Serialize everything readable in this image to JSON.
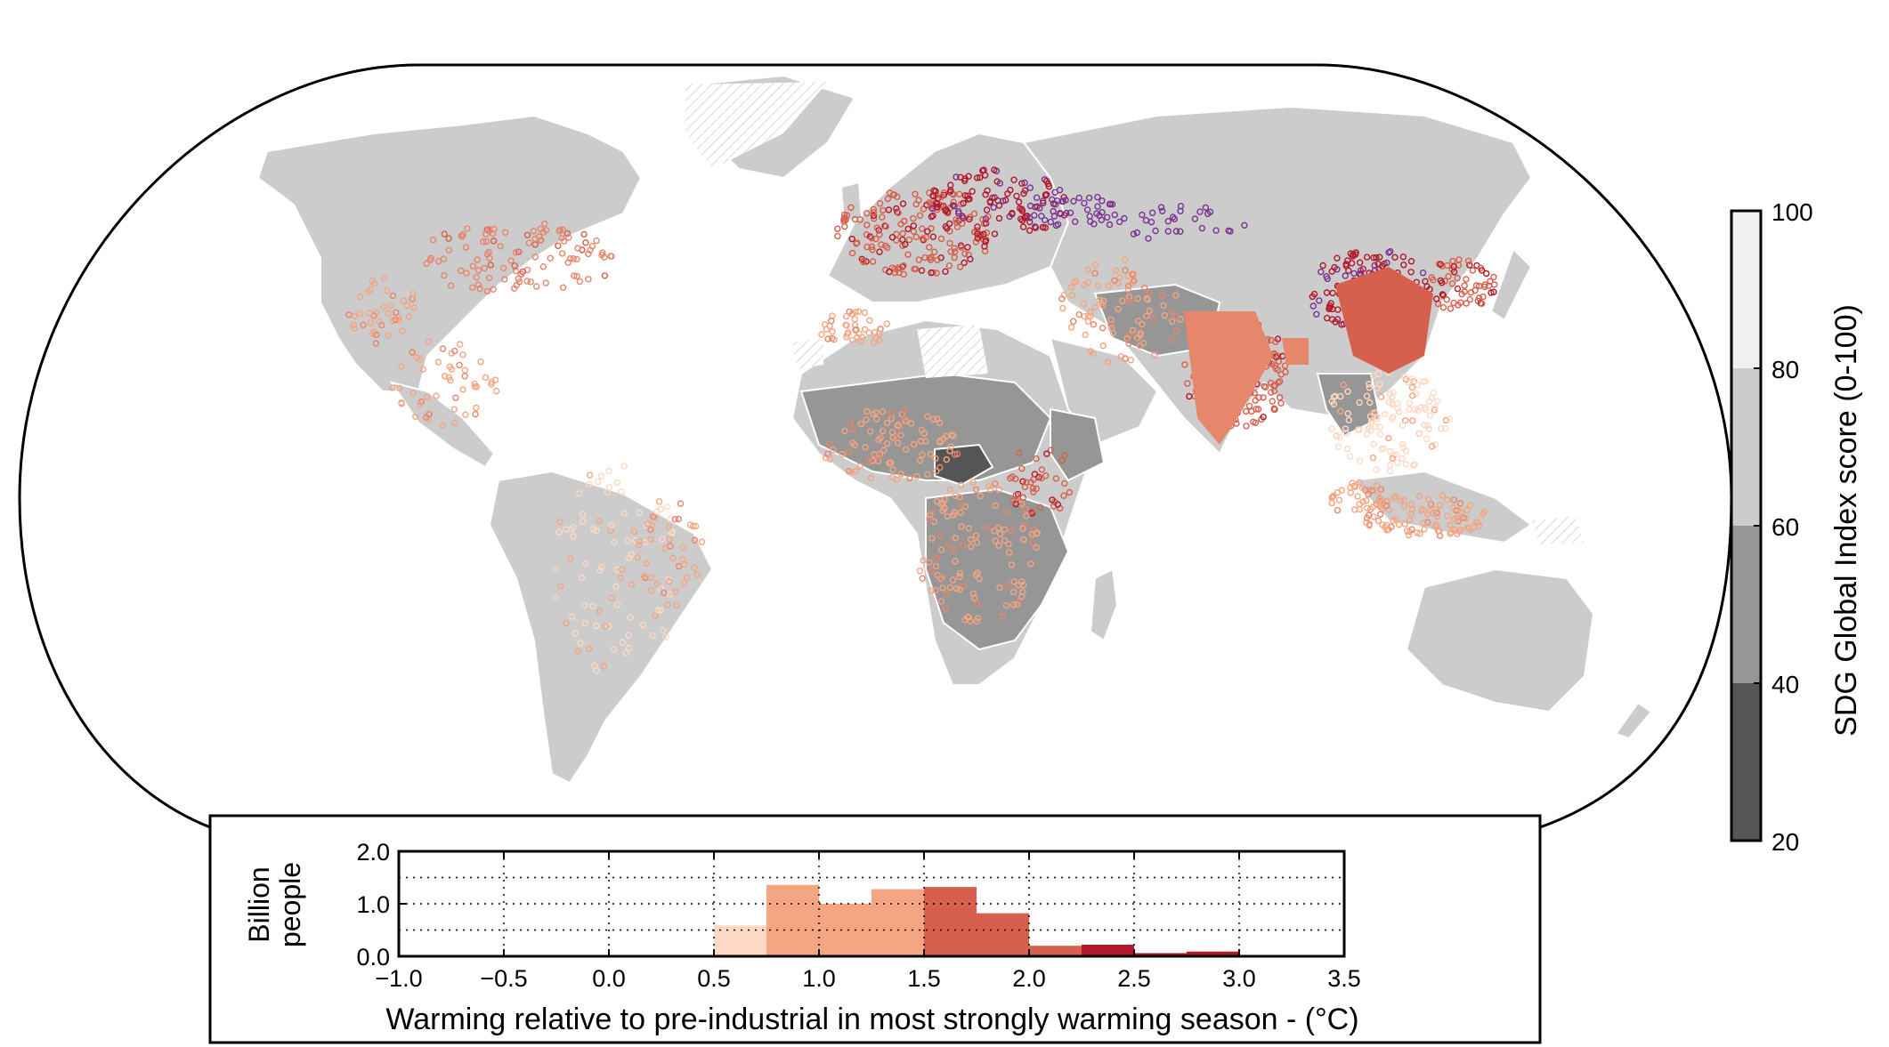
{
  "chart_data": [
    {
      "type": "map",
      "projection": "Robinson",
      "description_scope": "world choropleth with population scatter overlay",
      "colorbar": {
        "label": "SDG Global Index score (0-100)",
        "ticks": [
          20,
          40,
          60,
          80,
          100
        ],
        "bins": [
          {
            "range": [
              20,
              40
            ],
            "color": "#555555"
          },
          {
            "range": [
              40,
              60
            ],
            "color": "#969696"
          },
          {
            "range": [
              60,
              80
            ],
            "color": "#cccccc"
          },
          {
            "range": [
              80,
              100
            ],
            "color": "#f0f0f0"
          }
        ]
      },
      "point_colors": [
        "#fdd9c3",
        "#f4a582",
        "#e6866a",
        "#d6604d",
        "#b2182b",
        "#7b3294"
      ]
    },
    {
      "type": "bar",
      "xlabel": "Warming relative to pre-industrial in most strongly warming season - (°C)",
      "ylabel_lines": [
        "Billion",
        "people"
      ],
      "xlim": [
        -1.0,
        3.5
      ],
      "ylim": [
        0.0,
        2.0
      ],
      "xticks": [
        "−1.0",
        "−0.5",
        "0.0",
        "0.5",
        "1.0",
        "1.5",
        "2.0",
        "2.5",
        "3.0",
        "3.5"
      ],
      "xtick_values": [
        -1.0,
        -0.5,
        0.0,
        0.5,
        1.0,
        1.5,
        2.0,
        2.5,
        3.0,
        3.5
      ],
      "yticks": [
        "0.0",
        "1.0",
        "2.0"
      ],
      "ytick_values": [
        0.0,
        1.0,
        2.0
      ],
      "grid_y": [
        0.5,
        1.0,
        1.5
      ],
      "grid_x": [
        -0.5,
        0.0,
        0.5,
        1.0,
        1.5,
        2.0,
        2.5,
        3.0
      ],
      "bin_width": 0.25,
      "bars": [
        {
          "x": 0.5,
          "value": 0.59,
          "color": "#fdd9c3"
        },
        {
          "x": 0.75,
          "value": 1.36,
          "color": "#f4a582"
        },
        {
          "x": 1.0,
          "value": 1.0,
          "color": "#f4a582"
        },
        {
          "x": 1.25,
          "value": 1.28,
          "color": "#f4a582"
        },
        {
          "x": 1.5,
          "value": 1.32,
          "color": "#d6604d"
        },
        {
          "x": 1.75,
          "value": 0.82,
          "color": "#d6604d"
        },
        {
          "x": 2.0,
          "value": 0.2,
          "color": "#d6604d"
        },
        {
          "x": 2.25,
          "value": 0.22,
          "color": "#b2182b"
        },
        {
          "x": 2.5,
          "value": 0.06,
          "color": "#b2182b"
        },
        {
          "x": 2.75,
          "value": 0.09,
          "color": "#b2182b"
        }
      ]
    }
  ],
  "colors": {
    "ocean": "#ffffff",
    "land_default": "#cccccc",
    "country_border": "#ffffff",
    "frame": "#000000"
  }
}
